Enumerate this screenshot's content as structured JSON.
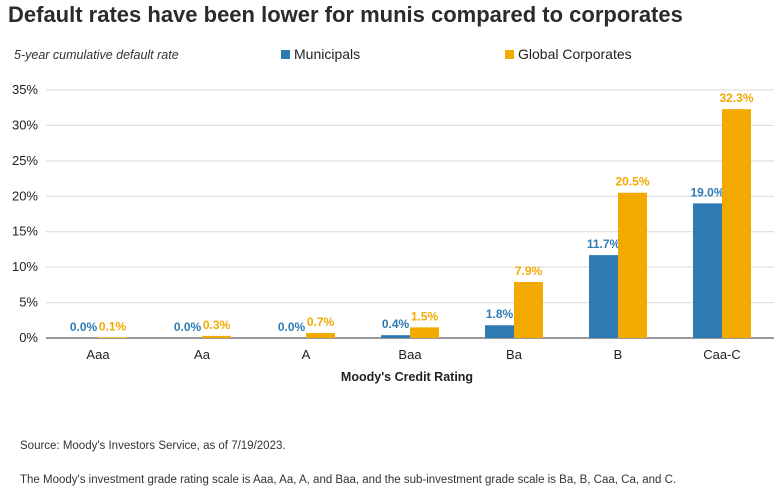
{
  "title": "Default rates have been lower for munis compared to corporates",
  "subtitle": "5-year cumulative default rate",
  "notes": {
    "source": "Source: Moody's Investors Service, as of 7/19/2023.",
    "scale": "The Moody's investment grade rating scale is Aaa, Aa, A, and Baa, and the sub-investment grade scale is Ba, B, Caa, Ca, and C."
  },
  "colors": {
    "municipals": "#2e7bb4",
    "corporates": "#f2a900",
    "grid": "#d9d9d9",
    "axis": "#333333"
  },
  "chart_data": {
    "type": "bar",
    "title": "Default rates have been lower for munis compared to corporates",
    "subtitle": "5-year cumulative default rate",
    "xlabel": "Moody's Credit Rating",
    "ylabel": "",
    "ylim": [
      0,
      35
    ],
    "yticks": [
      0,
      5,
      10,
      15,
      20,
      25,
      30,
      35
    ],
    "ytick_suffix": "%",
    "grid": true,
    "legend_position": "top",
    "categories": [
      "Aaa",
      "Aa",
      "A",
      "Baa",
      "Ba",
      "B",
      "Caa-C"
    ],
    "series": [
      {
        "name": "Municipals",
        "values": [
          0.0,
          0.0,
          0.0,
          0.4,
          1.8,
          11.7,
          19.0
        ],
        "labels": [
          "0.0%",
          "0.0%",
          "0.0%",
          "0.4%",
          "1.8%",
          "11.7%",
          "19.0%"
        ]
      },
      {
        "name": "Global Corporates",
        "values": [
          0.1,
          0.3,
          0.7,
          1.5,
          7.9,
          20.5,
          32.3
        ],
        "labels": [
          "0.1%",
          "0.3%",
          "0.7%",
          "1.5%",
          "7.9%",
          "20.5%",
          "32.3%"
        ]
      }
    ]
  }
}
